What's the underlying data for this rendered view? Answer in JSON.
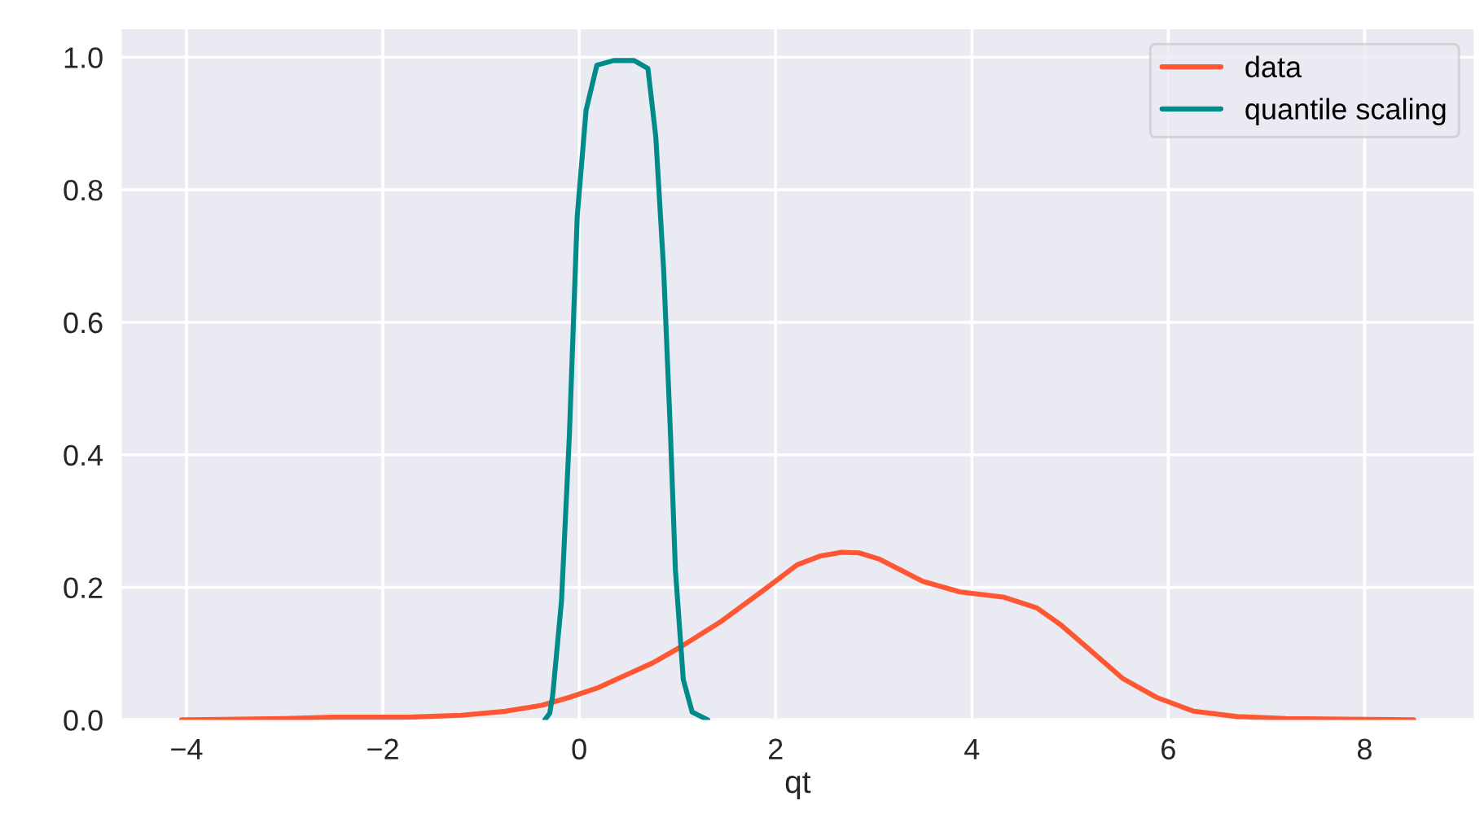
{
  "chart_data": {
    "type": "line",
    "xlabel": "qt",
    "series": [
      {
        "name": "data",
        "color": "#ff5733",
        "x": [
          -4.05,
          -3.0,
          -2.5,
          -2.0,
          -1.76,
          -1.2,
          -0.75,
          -0.38,
          -0.1,
          0.2,
          0.45,
          0.75,
          1.01,
          1.44,
          1.89,
          2.22,
          2.45,
          2.67,
          2.85,
          3.05,
          3.5,
          3.88,
          4.33,
          4.66,
          4.9,
          5.16,
          5.54,
          5.88,
          6.26,
          6.7,
          7.2,
          7.8,
          8.5
        ],
        "values": [
          0.0,
          0.002,
          0.004,
          0.004,
          0.004,
          0.007,
          0.013,
          0.022,
          0.034,
          0.049,
          0.066,
          0.086,
          0.108,
          0.148,
          0.197,
          0.234,
          0.247,
          0.253,
          0.252,
          0.243,
          0.209,
          0.193,
          0.185,
          0.169,
          0.144,
          0.111,
          0.062,
          0.034,
          0.013,
          0.005,
          0.002,
          0.001,
          0.0
        ]
      },
      {
        "name": "quantile scaling",
        "color": "#008b8b",
        "x": [
          -0.35,
          -0.3,
          -0.27,
          -0.18,
          -0.1,
          -0.02,
          0.07,
          0.18,
          0.35,
          0.56,
          0.7,
          0.78,
          0.86,
          0.93,
          0.98,
          1.06,
          1.15,
          1.31
        ],
        "values": [
          0.0,
          0.01,
          0.037,
          0.18,
          0.43,
          0.76,
          0.92,
          0.988,
          0.995,
          0.995,
          0.983,
          0.88,
          0.68,
          0.43,
          0.226,
          0.061,
          0.012,
          0.0
        ]
      }
    ],
    "xlim": [
      -4.66,
      9.11
    ],
    "ylim": [
      0,
      1.042
    ],
    "xticks": [
      {
        "value": -4,
        "label": "−4"
      },
      {
        "value": -2,
        "label": "−2"
      },
      0,
      2,
      4,
      6,
      8
    ],
    "yticks": [
      {
        "value": 0,
        "label": "0.0"
      },
      {
        "value": 0.2,
        "label": "0.2"
      },
      {
        "value": 0.4,
        "label": "0.4"
      },
      {
        "value": 0.6,
        "label": "0.6"
      },
      {
        "value": 0.8,
        "label": "0.8"
      },
      {
        "value": 1.0,
        "label": "1.0"
      }
    ],
    "grid": true,
    "legend": "top right",
    "marker": "none",
    "line_style": "solid"
  }
}
